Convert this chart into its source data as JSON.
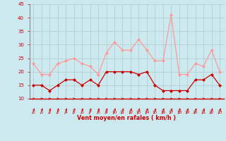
{
  "x": [
    0,
    1,
    2,
    3,
    4,
    5,
    6,
    7,
    8,
    9,
    10,
    11,
    12,
    13,
    14,
    15,
    16,
    17,
    18,
    19,
    20,
    21,
    22,
    23
  ],
  "wind_avg": [
    15,
    15,
    13,
    15,
    17,
    17,
    15,
    17,
    15,
    20,
    20,
    20,
    20,
    19,
    20,
    15,
    13,
    13,
    13,
    13,
    17,
    17,
    19,
    15
  ],
  "wind_gust": [
    23,
    19,
    19,
    23,
    24,
    25,
    23,
    22,
    19,
    27,
    31,
    28,
    28,
    32,
    28,
    24,
    24,
    41,
    19,
    19,
    23,
    22,
    28,
    20
  ],
  "bg_color": "#cce9f0",
  "grid_color": "#b0c8cc",
  "line_color_avg": "#cc0000",
  "line_color_gust": "#ff9999",
  "xlabel": "Vent moyen/en rafales ( km/h )",
  "ylim": [
    10,
    45
  ],
  "yticks": [
    10,
    15,
    20,
    25,
    30,
    35,
    40,
    45
  ],
  "xlim": [
    -0.5,
    23.5
  ],
  "xticks": [
    0,
    1,
    2,
    3,
    4,
    5,
    6,
    7,
    8,
    9,
    10,
    11,
    12,
    13,
    14,
    15,
    16,
    17,
    18,
    19,
    20,
    21,
    22,
    23
  ],
  "tick_color": "#cc0000",
  "xlabel_color": "#cc0000"
}
